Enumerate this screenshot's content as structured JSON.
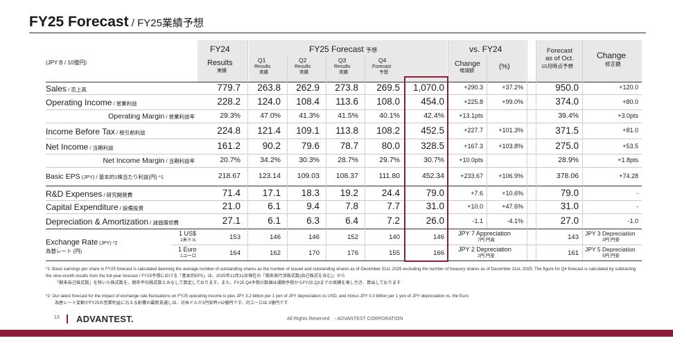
{
  "title": {
    "main": "FY25 Forecast",
    "sub": " / FY25業績予想"
  },
  "header": {
    "unit": "(JPY B / 10億円)",
    "fy24": "FY24",
    "fy24_results": "Results",
    "fy24_results_jp": "実績",
    "fy25_forecast": "FY25 Forecast",
    "fy25_forecast_jp": "予想",
    "q1": "Q1",
    "q1_sub": "Results",
    "q1_jp": "実績",
    "q2": "Q2",
    "q2_sub": "Results",
    "q2_jp": "実績",
    "q3": "Q3",
    "q3_sub": "Results",
    "q3_jp": "実績",
    "q4": "Q4",
    "q4_sub": "Forecast",
    "q4_jp": "予想",
    "vs_fy24": "vs. FY24",
    "change": "Change",
    "change_jp": "増減額",
    "pct": "(%)",
    "oct_line1": "Forecast",
    "oct_line2": "as of Oct.",
    "oct_jp": "10月時点予想",
    "change2": "Change",
    "change2_jp": "修正額"
  },
  "rows": [
    {
      "label": "Sales",
      "label_jp": " / 売上高",
      "fy24": "779.7",
      "q1": "263.8",
      "q2": "262.9",
      "q3": "273.8",
      "q4": "269.5",
      "fy25": "1,070.0",
      "chg": "+290.3",
      "pct": "+37.2%",
      "oct": "950.0",
      "chg2": "+120.0"
    },
    {
      "label": "Operating Income",
      "label_jp": " / 営業利益",
      "fy24": "228.2",
      "q1": "124.0",
      "q2": "108.4",
      "q3": "113.6",
      "q4": "108.0",
      "fy25": "454.0",
      "chg": "+225.8",
      "pct": "+99.0%",
      "oct": "374.0",
      "chg2": "+80.0"
    },
    {
      "label": "Operating Margin",
      "label_jp": " / 営業利益率",
      "fy24": "29.3%",
      "q1": "47.0%",
      "q2": "41.3%",
      "q3": "41.5%",
      "q4": "40.1%",
      "fy25": "42.4%",
      "chg": "+13.1pts",
      "pct": "",
      "oct": "39.4%",
      "chg2": "+3.0pts"
    },
    {
      "label": "Income Before Tax",
      "label_jp": " / 税引前利益",
      "fy24": "224.8",
      "q1": "121.4",
      "q2": "109.1",
      "q3": "113.8",
      "q4": "108.2",
      "fy25": "452.5",
      "chg": "+227.7",
      "pct": "+101.3%",
      "oct": "371.5",
      "chg2": "+81.0"
    },
    {
      "label": "Net Income",
      "label_jp": " / 当期利益",
      "fy24": "161.2",
      "q1": "90.2",
      "q2": "79.6",
      "q3": "78.7",
      "q4": "80.0",
      "fy25": "328.5",
      "chg": "+167.3",
      "pct": "+103.8%",
      "oct": "275.0",
      "chg2": "+53.5"
    },
    {
      "label": "Net Income Margin",
      "label_jp": " / 当期利益率",
      "fy24": "20.7%",
      "q1": "34.2%",
      "q2": "30.3%",
      "q3": "28.7%",
      "q4": "29.7%",
      "fy25": "30.7%",
      "chg": "+10.0pts",
      "pct": "",
      "oct": "28.9%",
      "chg2": "+1.8pts"
    },
    {
      "label": "Basic EPS",
      "label_jp": " (JPY) / 基本的1株当たり利益(円) *1",
      "fy24": "218.67",
      "q1": "123.14",
      "q2": "109.03",
      "q3": "108.37",
      "q4": "111.80",
      "fy25": "452.34",
      "chg": "+233.67",
      "pct": "+106.9%",
      "oct": "378.06",
      "chg2": "+74.28"
    },
    {
      "label": "R&D Expenses",
      "label_jp": " / 研究開発費",
      "fy24": "71.4",
      "q1": "17.1",
      "q2": "18.3",
      "q3": "19.2",
      "q4": "24.4",
      "fy25": "79.0",
      "chg": "+7.6",
      "pct": "+10.6%",
      "oct": "79.0",
      "chg2": "-"
    },
    {
      "label": "Capital Expenditure",
      "label_jp": " / 設備投資",
      "fy24": "21.0",
      "q1": "6.1",
      "q2": "9.4",
      "q3": "7.8",
      "q4": "7.7",
      "fy25": "31.0",
      "chg": "+10.0",
      "pct": "+47.6%",
      "oct": "31.0",
      "chg2": "-"
    },
    {
      "label": "Depreciation & Amortization",
      "label_jp": " / 減価償却費",
      "fy24": "27.1",
      "q1": "6.1",
      "q2": "6.3",
      "q3": "6.4",
      "q4": "7.2",
      "fy25": "26.0",
      "chg": "-1.1",
      "pct": "-4.1%",
      "oct": "27.0",
      "chg2": "-1.0"
    }
  ],
  "fx": {
    "label": "Exchange Rate",
    "label_unit": " (JPY) *2",
    "label_jp": "為替レート (円)",
    "usd": "1 US$",
    "usd_jp": "1米ドル",
    "eur": "1 Euro",
    "eur_jp": "1ユーロ",
    "usd_vals": {
      "fy24": "153",
      "q1": "146",
      "q2": "146",
      "q3": "152",
      "q4": "140",
      "fy25": "146",
      "oct": "143"
    },
    "eur_vals": {
      "fy24": "164",
      "q1": "162",
      "q2": "170",
      "q3": "176",
      "q4": "155",
      "fy25": "166",
      "oct": "161"
    },
    "usd_vs": "JPY 7 Appreciation",
    "usd_vs_jp": "7円 円高",
    "eur_vs": "JPY 2 Depreciation",
    "eur_vs_jp": "2円 円安",
    "usd_chg2": "JPY 3 Depreciation",
    "usd_chg2_jp": "3円 円安",
    "eur_chg2": "JPY 5 Depreciation",
    "eur_chg2_jp": "5円 円安"
  },
  "footnotes": {
    "n1_en": "*1: Basic earnings per share in FY25 forecast is calculated deeming the average number of outstanding shares as the number of issued and outstanding shares as of December 31st, 2025 excluding the number of treasury shares as of December 31st, 2025. The figure for Q4 forecast is calculated by subtracting the nine-month results from the full-year forecast / FY25予想における「基本的EPS」は、2025年12月31日現在の「期末発行済株式数(自己株式を含む)」から",
    "n1_jp": "「期末自己株式数」を除いた株式数を、期中平均株式数とみなして算定しております。また、FY25 Q4予想の数値は通期予想からFY25 Q3までの実績を差し引き、算出しております",
    "n2_en": "*2: Our latest forecast for the impact of exchange rate fluctuations on FY25 operating income is plus JPY 3.2 billion per 1 yen of JPY depreciation vs USD, and minus JPY 0.3 billion per 1 yen of JPY depreciation vs. the Euro",
    "n2_jp": "為替レート変動がFY25の営業利益に与える影響の最新見通しは、対米ドルが1円安時+32億円です。対ユーロは-3億円です"
  },
  "footer": {
    "page": "13",
    "logo": "ADVANTEST.",
    "rights": "All Rights Reserved　- ADVANTEST CORPORATION"
  },
  "colors": {
    "accent": "#8a1c3b",
    "shade": "#e8e8e8"
  },
  "icons": {
    "logo": "advantest-logo"
  }
}
